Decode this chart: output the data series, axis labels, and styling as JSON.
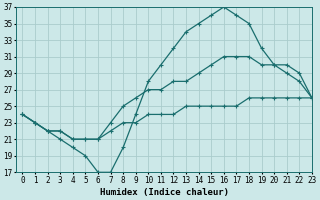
{
  "xlabel": "Humidex (Indice chaleur)",
  "background_color": "#cce8e8",
  "grid_color": "#aacccc",
  "line_color": "#1a6e6e",
  "x": [
    0,
    1,
    2,
    3,
    4,
    5,
    6,
    7,
    8,
    9,
    10,
    11,
    12,
    13,
    14,
    15,
    16,
    17,
    18,
    19,
    20,
    21,
    22,
    23
  ],
  "y_top": [
    24,
    23,
    22,
    21,
    20,
    19,
    17,
    17,
    20,
    24,
    28,
    30,
    32,
    34,
    35,
    36,
    37,
    36,
    35,
    32,
    30,
    29,
    28,
    26
  ],
  "y_mid": [
    24,
    23,
    22,
    22,
    21,
    21,
    21,
    23,
    25,
    26,
    27,
    27,
    28,
    28,
    29,
    30,
    31,
    31,
    31,
    30,
    30,
    30,
    29,
    26
  ],
  "y_bot": [
    24,
    23,
    22,
    22,
    21,
    21,
    21,
    22,
    23,
    23,
    24,
    24,
    24,
    25,
    25,
    25,
    25,
    25,
    26,
    26,
    26,
    26,
    26,
    26
  ],
  "ylim": [
    17,
    37
  ],
  "xlim": [
    -0.5,
    23
  ],
  "yticks": [
    17,
    19,
    21,
    23,
    25,
    27,
    29,
    31,
    33,
    35,
    37
  ],
  "xticks": [
    0,
    1,
    2,
    3,
    4,
    5,
    6,
    7,
    8,
    9,
    10,
    11,
    12,
    13,
    14,
    15,
    16,
    17,
    18,
    19,
    20,
    21,
    22,
    23
  ],
  "xlabel_fontsize": 6.5,
  "tick_fontsize": 5.5
}
